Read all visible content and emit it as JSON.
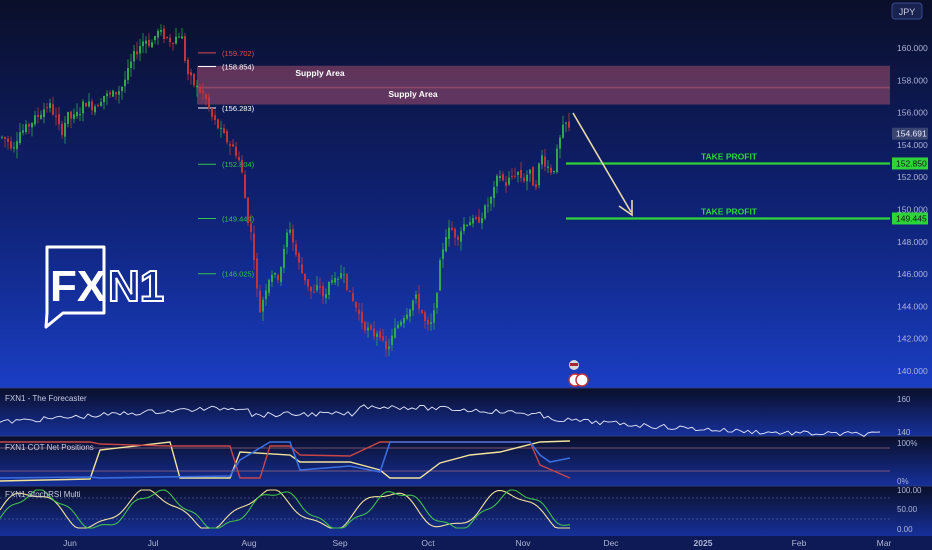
{
  "symbol_currency": "JPY",
  "colors": {
    "bg_top": "#0a0f2a",
    "bg_bottom": "#1638b8",
    "up": "#2ea84a",
    "down": "#c2343a",
    "supply": "#c85a78",
    "take_profit": "#2fd43a",
    "fib_red": "#e24b4b",
    "fib_white": "#ffffff",
    "fib_green": "#33c24a",
    "arrow": "#e8d9a8",
    "logo": "#ffffff"
  },
  "logo": {
    "text_a": "FX",
    "text_b": "N1"
  },
  "chart_data": {
    "type": "candlestick",
    "x_ticks": [
      "Jun",
      "Jul",
      "Aug",
      "Sep",
      "Oct",
      "Nov",
      "Dec",
      "2025",
      "Feb",
      "Mar"
    ],
    "y_ticks": [
      "160.000",
      "158.000",
      "156.000",
      "154.000",
      "152.000",
      "150.000",
      "148.000",
      "146.000",
      "144.000",
      "142.000",
      "140.000"
    ],
    "ylim": [
      139.5,
      161.0
    ],
    "last_price": "154.691",
    "price_path": [
      [
        0,
        154.5
      ],
      [
        6,
        154.3
      ],
      [
        12,
        153.9
      ],
      [
        18,
        154.8
      ],
      [
        24,
        154.9
      ],
      [
        30,
        155.4
      ],
      [
        36,
        155.7
      ],
      [
        42,
        156.2
      ],
      [
        48,
        156.5
      ],
      [
        54,
        155.8
      ],
      [
        60,
        154.7
      ],
      [
        66,
        155.8
      ],
      [
        72,
        155.6
      ],
      [
        78,
        156.0
      ],
      [
        84,
        156.7
      ],
      [
        90,
        156.4
      ],
      [
        96,
        156.5
      ],
      [
        102,
        157.1
      ],
      [
        108,
        157.0
      ],
      [
        114,
        157.2
      ],
      [
        120,
        157.5
      ],
      [
        126,
        158.3
      ],
      [
        132,
        159.4
      ],
      [
        138,
        160.1
      ],
      [
        144,
        160.6
      ],
      [
        150,
        160.2
      ],
      [
        156,
        161.0
      ],
      [
        162,
        160.8
      ],
      [
        168,
        160.5
      ],
      [
        174,
        160.6
      ],
      [
        180,
        161.0
      ],
      [
        186,
        158.5
      ],
      [
        192,
        157.8
      ],
      [
        198,
        157.4
      ],
      [
        204,
        157.0
      ],
      [
        210,
        155.8
      ],
      [
        216,
        155.2
      ],
      [
        222,
        154.6
      ],
      [
        228,
        154.1
      ],
      [
        234,
        153.7
      ],
      [
        240,
        152.7
      ],
      [
        246,
        149.7
      ],
      [
        252,
        147.9
      ],
      [
        258,
        143.5
      ],
      [
        264,
        145.0
      ],
      [
        270,
        146.2
      ],
      [
        276,
        145.6
      ],
      [
        282,
        147.0
      ],
      [
        288,
        149.2
      ],
      [
        294,
        147.4
      ],
      [
        300,
        146.2
      ],
      [
        306,
        145.5
      ],
      [
        312,
        144.6
      ],
      [
        318,
        145.4
      ],
      [
        324,
        144.3
      ],
      [
        330,
        146.0
      ],
      [
        336,
        145.2
      ],
      [
        342,
        146.6
      ],
      [
        348,
        144.7
      ],
      [
        354,
        144.1
      ],
      [
        360,
        143.2
      ],
      [
        366,
        142.6
      ],
      [
        372,
        142.2
      ],
      [
        378,
        142.6
      ],
      [
        384,
        141.1
      ],
      [
        390,
        141.9
      ],
      [
        396,
        142.8
      ],
      [
        402,
        143.4
      ],
      [
        408,
        143.9
      ],
      [
        414,
        144.6
      ],
      [
        420,
        143.8
      ],
      [
        426,
        142.6
      ],
      [
        432,
        143.0
      ],
      [
        438,
        146.2
      ],
      [
        444,
        148.4
      ],
      [
        450,
        148.8
      ],
      [
        456,
        148.3
      ],
      [
        462,
        149.0
      ],
      [
        468,
        149.4
      ],
      [
        474,
        149.1
      ],
      [
        480,
        149.6
      ],
      [
        486,
        150.2
      ],
      [
        492,
        150.9
      ],
      [
        498,
        152.3
      ],
      [
        504,
        151.5
      ],
      [
        510,
        152.0
      ],
      [
        516,
        152.4
      ],
      [
        522,
        151.8
      ],
      [
        528,
        152.4
      ],
      [
        534,
        151.3
      ],
      [
        540,
        153.4
      ],
      [
        546,
        152.7
      ],
      [
        552,
        152.3
      ],
      [
        558,
        154.1
      ],
      [
        564,
        155.4
      ],
      [
        570,
        154.7
      ]
    ],
    "fib_levels": [
      {
        "label": "(159.702)",
        "value": 159.702,
        "color": "#e24b4b"
      },
      {
        "label": "(158.854)",
        "value": 158.854,
        "color": "#ffffff"
      },
      {
        "label": "(156.283)",
        "value": 156.283,
        "color": "#ffffff"
      },
      {
        "label": "(152.804)",
        "value": 152.804,
        "color": "#33c24a"
      },
      {
        "label": "(149.444)",
        "value": 149.444,
        "color": "#33c24a"
      },
      {
        "label": "(146.025)",
        "value": 146.025,
        "color": "#33c24a"
      }
    ],
    "supply_areas": [
      {
        "label": "Supply Area",
        "from": 157.5,
        "to": 158.9
      },
      {
        "label": "Supply Area",
        "from": 156.5,
        "to": 157.6
      }
    ],
    "take_profits": [
      {
        "label": "TAKE PROFIT",
        "value": 152.85,
        "price_label": "152.850"
      },
      {
        "label": "TAKE PROFIT",
        "value": 149.445,
        "price_label": "149.445"
      }
    ],
    "indicators": [
      {
        "name": "FXN1 - The Forecaster",
        "ticks": [
          "160",
          "140"
        ]
      },
      {
        "name": "FXN1 COT Net Positions",
        "ticks": [
          "100%",
          "0%"
        ]
      },
      {
        "name": "FXN1 StochRSI Multi",
        "ticks": [
          "100.00",
          "50.00",
          "0.00"
        ]
      }
    ]
  }
}
